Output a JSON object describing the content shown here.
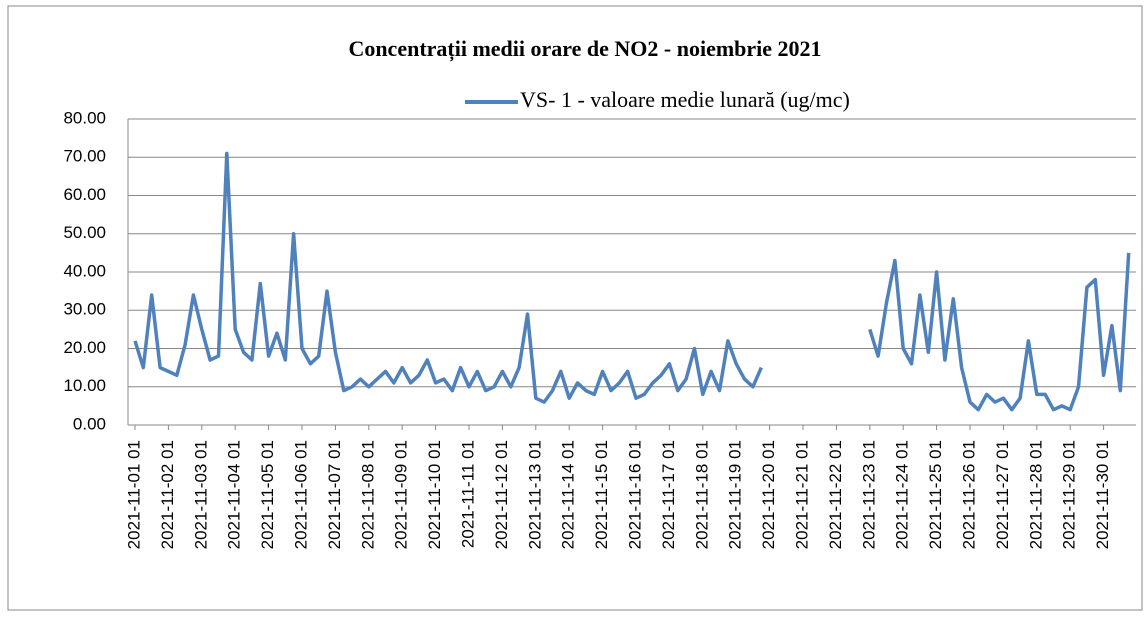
{
  "chart_data": {
    "type": "line",
    "title": "Concentrații  medii orare de NO2 - noiembrie 2021",
    "categories": [
      "2021-11-01 01",
      null,
      null,
      null,
      "2021-11-02 01",
      null,
      null,
      null,
      "2021-11-03 01",
      null,
      null,
      null,
      "2021-11-04 01",
      null,
      null,
      null,
      "2021-11-05 01",
      null,
      null,
      null,
      "2021-11-06 01",
      null,
      null,
      null,
      "2021-11-07 01",
      null,
      null,
      null,
      "2021-11-08 01",
      null,
      null,
      null,
      "2021-11-09 01",
      null,
      null,
      null,
      "2021-11-10 01",
      null,
      null,
      null,
      "2021-11-11 01",
      null,
      null,
      null,
      "2021-11-12 01",
      null,
      null,
      null,
      "2021-11-13 01",
      null,
      null,
      null,
      "2021-11-14 01",
      null,
      null,
      null,
      "2021-11-15 01",
      null,
      null,
      null,
      "2021-11-16 01",
      null,
      null,
      null,
      "2021-11-17 01",
      null,
      null,
      null,
      "2021-11-18 01",
      null,
      null,
      null,
      "2021-11-19 01",
      null,
      null,
      null,
      "2021-11-20 01",
      null,
      null,
      null,
      "2021-11-21 01",
      null,
      null,
      null,
      "2021-11-22 01",
      null,
      null,
      null,
      "2021-11-23 01",
      null,
      null,
      null,
      "2021-11-24 01",
      null,
      null,
      null,
      "2021-11-25 01",
      null,
      null,
      null,
      "2021-11-26 01",
      null,
      null,
      null,
      "2021-11-27 01",
      null,
      null,
      null,
      "2021-11-28 01",
      null,
      null,
      null,
      "2021-11-29 01",
      null,
      null,
      null,
      "2021-11-30 01",
      null,
      null,
      null
    ],
    "series": [
      {
        "name": "VS- 1 - valoare medie lunară (ug/mc)",
        "color": "#4f81bd",
        "values": [
          22,
          15,
          34,
          15,
          14,
          13,
          21,
          34,
          25,
          17,
          18,
          71,
          25,
          19,
          17,
          37,
          18,
          24,
          17,
          50,
          20,
          16,
          18,
          35,
          19,
          9,
          10,
          12,
          10,
          12,
          14,
          11,
          15,
          11,
          13,
          17,
          11,
          12,
          9,
          15,
          10,
          14,
          9,
          10,
          14,
          10,
          15,
          29,
          7,
          6,
          9,
          14,
          7,
          11,
          9,
          8,
          14,
          9,
          11,
          14,
          7,
          8,
          11,
          13,
          16,
          9,
          12,
          20,
          8,
          14,
          9,
          22,
          16,
          12,
          10,
          15,
          null,
          null,
          null,
          null,
          null,
          null,
          null,
          null,
          null,
          null,
          null,
          null,
          25,
          18,
          32,
          43,
          20,
          16,
          34,
          19,
          40,
          17,
          33,
          15,
          6,
          4,
          8,
          6,
          7,
          4,
          7,
          22,
          8,
          8,
          4,
          5,
          4,
          10,
          36,
          38,
          13,
          26,
          9,
          45
        ]
      }
    ],
    "ylim": [
      0,
      80
    ],
    "yticks": [
      {
        "value": 0,
        "label": "0.00"
      },
      {
        "value": 10,
        "label": "10.00"
      },
      {
        "value": 20,
        "label": "20.00"
      },
      {
        "value": 30,
        "label": "30.00"
      },
      {
        "value": 40,
        "label": "40.00"
      },
      {
        "value": 50,
        "label": "50.00"
      },
      {
        "value": 60,
        "label": "60.00"
      },
      {
        "value": 70,
        "label": "70.00"
      },
      {
        "value": 80,
        "label": "80.00"
      }
    ],
    "grid": true
  }
}
